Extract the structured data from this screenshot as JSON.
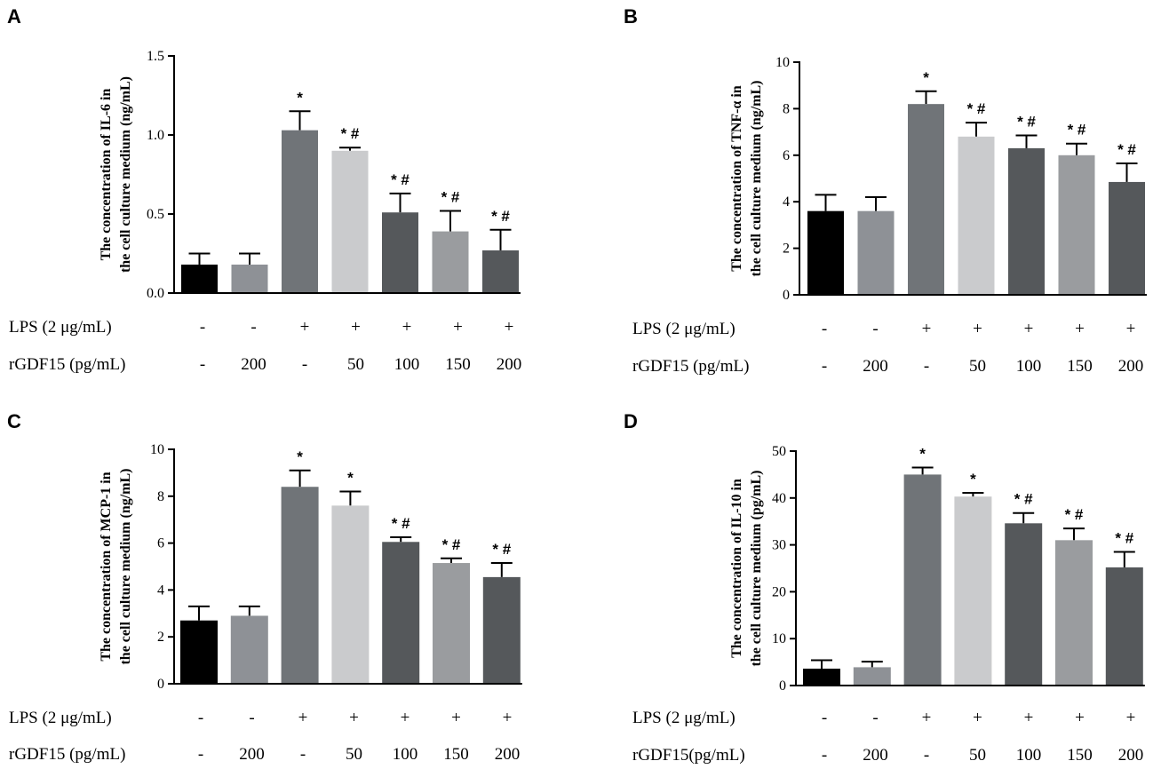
{
  "chart_data": [
    {
      "type": "bar",
      "panel": "A",
      "ylabel_line1": "The concentration of IL-6 in",
      "ylabel_line2": "the cell culture medium (ng/mL)",
      "ylim": [
        0,
        1.5
      ],
      "yticks": [
        "0.0",
        "0.5",
        "1.0",
        "1.5"
      ],
      "ytick_values": [
        0,
        0.5,
        1.0,
        1.5
      ],
      "values": [
        0.18,
        0.18,
        1.03,
        0.9,
        0.51,
        0.39,
        0.27
      ],
      "errors": [
        0.07,
        0.07,
        0.12,
        0.02,
        0.12,
        0.13,
        0.13
      ],
      "colors": [
        "#000000",
        "#8e9196",
        "#707478",
        "#cacbcd",
        "#55585b",
        "#9a9c9f",
        "#55585b"
      ],
      "significance": [
        "",
        "",
        "*",
        "* #",
        "* #",
        "* #",
        "* #"
      ],
      "rows": [
        {
          "label": "LPS (2 μg/mL)",
          "values": [
            "-",
            "-",
            "+",
            "+",
            "+",
            "+",
            "+"
          ]
        },
        {
          "label": "rGDF15 (pg/mL)",
          "values": [
            "-",
            "200",
            "-",
            "50",
            "100",
            "150",
            "200"
          ]
        }
      ]
    },
    {
      "type": "bar",
      "panel": "B",
      "ylabel_line1": "The concentration of TNF-α in",
      "ylabel_line2": "the cell culture medium (ng/mL)",
      "ylim": [
        0,
        10
      ],
      "yticks": [
        "0",
        "2",
        "4",
        "6",
        "8",
        "10"
      ],
      "ytick_values": [
        0,
        2,
        4,
        6,
        8,
        10
      ],
      "values": [
        3.6,
        3.6,
        8.2,
        6.8,
        6.3,
        6.0,
        4.85
      ],
      "errors": [
        0.7,
        0.6,
        0.55,
        0.6,
        0.55,
        0.5,
        0.8
      ],
      "colors": [
        "#000000",
        "#8e9196",
        "#707478",
        "#cacbcd",
        "#55585b",
        "#9a9c9f",
        "#55585b"
      ],
      "significance": [
        "",
        "",
        "*",
        "* #",
        "* #",
        "* #",
        "* #"
      ],
      "rows": [
        {
          "label": "LPS (2 μg/mL)",
          "values": [
            "-",
            "-",
            "+",
            "+",
            "+",
            "+",
            "+"
          ]
        },
        {
          "label": "rGDF15 (pg/mL)",
          "values": [
            "-",
            "200",
            "-",
            "50",
            "100",
            "150",
            "200"
          ]
        }
      ]
    },
    {
      "type": "bar",
      "panel": "C",
      "ylabel_line1": "The concentration of MCP-1 in",
      "ylabel_line2": "the cell culture medium (ng/mL)",
      "ylim": [
        0,
        10
      ],
      "yticks": [
        "0",
        "2",
        "4",
        "6",
        "8",
        "10"
      ],
      "ytick_values": [
        0,
        2,
        4,
        6,
        8,
        10
      ],
      "values": [
        2.7,
        2.9,
        8.4,
        7.6,
        6.05,
        5.15,
        4.55
      ],
      "errors": [
        0.6,
        0.4,
        0.7,
        0.6,
        0.2,
        0.2,
        0.6
      ],
      "colors": [
        "#000000",
        "#8e9196",
        "#707478",
        "#cacbcd",
        "#55585b",
        "#9a9c9f",
        "#55585b"
      ],
      "significance": [
        "",
        "",
        "*",
        "*",
        "* #",
        "* #",
        "* #"
      ],
      "rows": [
        {
          "label": "LPS (2 μg/mL)",
          "values": [
            "-",
            "-",
            "+",
            "+",
            "+",
            "+",
            "+"
          ]
        },
        {
          "label": "rGDF15 (pg/mL)",
          "values": [
            "-",
            "200",
            "-",
            "50",
            "100",
            "150",
            "200"
          ]
        }
      ]
    },
    {
      "type": "bar",
      "panel": "D",
      "ylabel_line1": "The concentration of IL-10 in",
      "ylabel_line2": "the cell culture medium (pg/mL)",
      "ylim": [
        0,
        50
      ],
      "yticks": [
        "0",
        "10",
        "20",
        "30",
        "40",
        "50"
      ],
      "ytick_values": [
        0,
        10,
        20,
        30,
        40,
        50
      ],
      "values": [
        3.6,
        3.9,
        45.0,
        40.3,
        34.6,
        31.0,
        25.2
      ],
      "errors": [
        1.8,
        1.2,
        1.5,
        0.8,
        2.2,
        2.5,
        3.3
      ],
      "colors": [
        "#000000",
        "#8e9196",
        "#707478",
        "#cacbcd",
        "#55585b",
        "#9a9c9f",
        "#55585b"
      ],
      "significance": [
        "",
        "",
        "*",
        "*",
        "* #",
        "* #",
        "* #"
      ],
      "rows": [
        {
          "label": "LPS (2 μg/mL)",
          "values": [
            "-",
            "-",
            "+",
            "+",
            "+",
            "+",
            "+"
          ]
        },
        {
          "label": "rGDF15(pg/mL)",
          "values": [
            "-",
            "200",
            "-",
            "50",
            "100",
            "150",
            "200"
          ]
        }
      ]
    }
  ]
}
